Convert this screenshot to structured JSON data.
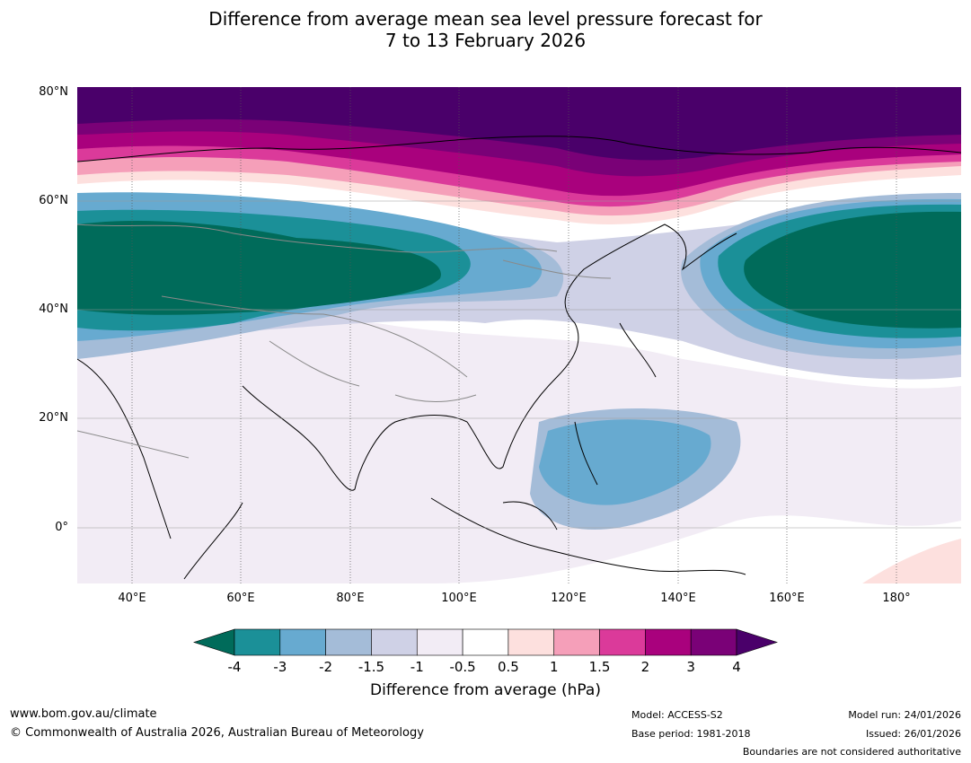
{
  "title_line1": "Difference from average mean sea level pressure forecast for",
  "title_line2": "7 to 13 February 2026",
  "map": {
    "lat_labels": [
      "80°N",
      "60°N",
      "40°N",
      "20°N",
      "0°"
    ],
    "lon_labels": [
      "40°E",
      "60°E",
      "80°E",
      "100°E",
      "120°E",
      "140°E",
      "160°E",
      "180°"
    ]
  },
  "colorbar": {
    "label": "Difference from average (hPa)",
    "ticks": [
      "-4",
      "-3",
      "-2",
      "-1.5",
      "-1",
      "-0.5",
      "0.5",
      "1",
      "1.5",
      "2",
      "3",
      "4"
    ],
    "colors": [
      "#006b5a",
      "#1b9098",
      "#67aad0",
      "#a4bcd8",
      "#cfd1e6",
      "#f2ecf5",
      "#ffffff",
      "#fde0de",
      "#f59fb9",
      "#db3a9a",
      "#a9017d",
      "#7a0177",
      "#4a006a"
    ]
  },
  "footer": {
    "website": "www.bom.gov.au/climate",
    "copyright": "© Commonwealth of Australia 2026, Australian Bureau of Meteorology",
    "model": "Model: ACCESS-S2",
    "base_period": "Base period: 1981-2018",
    "model_run": "Model run: 24/01/2026",
    "issued": "Issued: 26/01/2026",
    "boundaries": "Boundaries are not considered authoritative"
  }
}
